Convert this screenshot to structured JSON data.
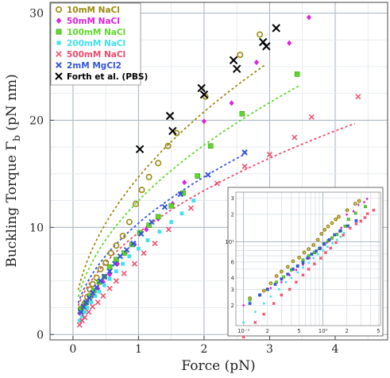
{
  "chart_data": [
    {
      "type": "scatter",
      "xlabel": "Force (pN)",
      "ylabel": "Buckling Torque Γ",
      "ylabel_sub": "b",
      "ylabel_unit": "(pN nm)",
      "xlim": [
        -0.35,
        4.8
      ],
      "ylim": [
        -0.5,
        31
      ],
      "xticks": [
        0,
        1,
        2,
        3,
        4
      ],
      "yticks": [
        0,
        10,
        20,
        30
      ],
      "grid": true,
      "legend_position": "top-left",
      "series": [
        {
          "name": "10mM NaCl",
          "marker": "open-circle",
          "color": "#9a8a10",
          "fit_a": 14.7,
          "fit_range": [
            0.08,
            2.95
          ],
          "x": [
            0.12,
            0.18,
            0.22,
            0.26,
            0.3,
            0.36,
            0.42,
            0.5,
            0.58,
            0.66,
            0.76,
            0.86,
            0.96,
            1.05,
            1.16,
            1.3,
            1.45,
            1.58,
            2.02,
            2.55,
            2.85
          ],
          "y": [
            2.4,
            2.9,
            3.5,
            4.2,
            4.7,
            5.3,
            6.1,
            6.7,
            7.6,
            8.3,
            9.2,
            10.5,
            12.2,
            13.5,
            14.7,
            16.0,
            17.6,
            18.8,
            22.2,
            26.1,
            28.0
          ]
        },
        {
          "name": "50mM NaCl",
          "marker": "diamond",
          "color": "#e020e0",
          "x": [
            0.1,
            0.16,
            0.22,
            0.3,
            0.38,
            0.46,
            0.56,
            0.68,
            0.8,
            0.94,
            1.12,
            1.3,
            1.52,
            1.7,
            2.0,
            2.42,
            2.8,
            3.3,
            3.6
          ],
          "y": [
            2.0,
            2.6,
            3.1,
            3.6,
            4.3,
            4.9,
            5.6,
            6.6,
            7.6,
            8.4,
            9.8,
            10.8,
            12.2,
            14.2,
            19.9,
            21.6,
            25.4,
            27.2,
            29.6
          ]
        },
        {
          "name": "100mM NaCl",
          "marker": "square",
          "color": "#5dd82a",
          "fit_a": 12.5,
          "fit_range": [
            0.08,
            3.45
          ],
          "x": [
            0.12,
            0.16,
            0.2,
            0.26,
            0.32,
            0.4,
            0.48,
            0.56,
            0.66,
            0.78,
            0.9,
            1.02,
            1.16,
            1.3,
            1.5,
            1.68,
            1.9,
            2.1,
            2.58,
            3.42
          ],
          "y": [
            2.3,
            2.6,
            3.0,
            3.6,
            4.1,
            4.9,
            5.4,
            6.3,
            7.0,
            7.6,
            8.4,
            9.5,
            10.2,
            11.0,
            12.0,
            13.2,
            14.8,
            17.6,
            20.6,
            24.3
          ]
        },
        {
          "name": "200mM NaCl",
          "marker": "square-small",
          "color": "#40e0f0",
          "x": [
            0.1,
            0.14,
            0.18,
            0.22,
            0.28,
            0.34,
            0.4,
            0.48,
            0.56,
            0.66,
            0.76,
            0.86,
            1.0,
            1.14,
            1.32,
            1.5,
            1.66,
            1.84
          ],
          "y": [
            1.3,
            1.7,
            2.1,
            2.5,
            3.0,
            3.6,
            4.0,
            4.6,
            5.2,
            5.9,
            6.6,
            7.3,
            8.0,
            8.8,
            9.6,
            10.5,
            11.3,
            12.5
          ]
        },
        {
          "name": "500mM NaCl",
          "marker": "x",
          "color": "#f04a6a",
          "fit_a": 9.5,
          "fit_range": [
            0.08,
            4.3
          ],
          "x": [
            0.1,
            0.14,
            0.18,
            0.24,
            0.3,
            0.38,
            0.46,
            0.56,
            0.66,
            0.78,
            0.94,
            1.08,
            1.25,
            1.46,
            1.8,
            2.2,
            2.62,
            3.0,
            3.38,
            3.64,
            4.35
          ],
          "y": [
            0.9,
            1.3,
            1.6,
            2.1,
            2.6,
            3.0,
            3.6,
            4.3,
            5.0,
            5.7,
            6.6,
            7.6,
            8.5,
            9.8,
            11.8,
            14.1,
            15.7,
            16.8,
            18.4,
            20.3,
            22.2
          ]
        },
        {
          "name": "2mM MgCl2",
          "marker": "x-bold",
          "color": "#3355d8",
          "fit_a": 10.4,
          "fit_range": [
            0.08,
            2.6
          ],
          "x": [
            0.12,
            0.16,
            0.2,
            0.25,
            0.3,
            0.36,
            0.42,
            0.48,
            0.56,
            0.64,
            0.72,
            0.82,
            0.92,
            1.04,
            1.2,
            1.4,
            1.64,
            2.06,
            2.62
          ],
          "y": [
            2.1,
            2.6,
            3.0,
            3.4,
            3.9,
            4.4,
            5.0,
            5.4,
            5.9,
            6.6,
            7.3,
            7.9,
            8.5,
            9.4,
            10.5,
            11.9,
            13.1,
            14.9,
            17.0
          ]
        },
        {
          "name": "Forth et al. (PBS)",
          "marker": "x-bold",
          "color": "#000000",
          "x": [
            1.02,
            1.48,
            1.52,
            1.96,
            2.0,
            2.45,
            2.5,
            2.9,
            2.95,
            3.1
          ],
          "y": [
            17.3,
            20.4,
            19.0,
            23.0,
            22.4,
            25.6,
            24.8,
            27.3,
            26.9,
            28.6
          ]
        }
      ]
    },
    {
      "type": "scatter",
      "inset": true,
      "log_x": true,
      "log_y": true,
      "xticks_labeled": [
        {
          "v": 0.1,
          "t": "10⁻¹"
        },
        {
          "v": 0.2,
          "t": "2"
        },
        {
          "v": 0.5,
          "t": "5"
        },
        {
          "v": 1,
          "t": "10⁰"
        },
        {
          "v": 2,
          "t": "2"
        },
        {
          "v": 5,
          "t": "5"
        }
      ],
      "yticks_labeled": [
        {
          "v": 2,
          "t": "2"
        },
        {
          "v": 3,
          "t": "3"
        },
        {
          "v": 4,
          "t": "4"
        },
        {
          "v": 6,
          "t": "6"
        },
        {
          "v": 10,
          "t": "10¹"
        },
        {
          "v": 20,
          "t": "2"
        },
        {
          "v": 30,
          "t": "3"
        }
      ],
      "xlim": [
        0.08,
        5.3
      ],
      "ylim": [
        1.2,
        35
      ]
    }
  ]
}
